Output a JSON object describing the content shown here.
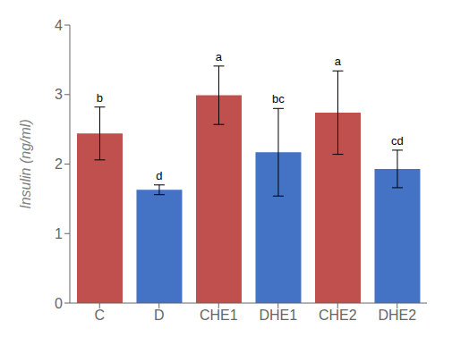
{
  "chart_data": {
    "type": "bar",
    "categories": [
      "C",
      "D",
      "CHE1",
      "DHE1",
      "CHE2",
      "DHE2"
    ],
    "values": [
      2.44,
      1.63,
      2.99,
      2.17,
      2.74,
      1.93
    ],
    "errors": [
      0.38,
      0.07,
      0.42,
      0.63,
      0.6,
      0.27
    ],
    "colors": [
      "#c0504d",
      "#4472c4",
      "#c0504d",
      "#4472c4",
      "#c0504d",
      "#4472c4"
    ],
    "annotations": [
      "b",
      "d",
      "a",
      "bc",
      "a",
      "cd"
    ],
    "ylabel": "Insulin (ng/ml)",
    "ylim": [
      0,
      4.0
    ],
    "yticks": [
      0,
      1,
      2,
      3,
      4
    ],
    "grid": false
  }
}
